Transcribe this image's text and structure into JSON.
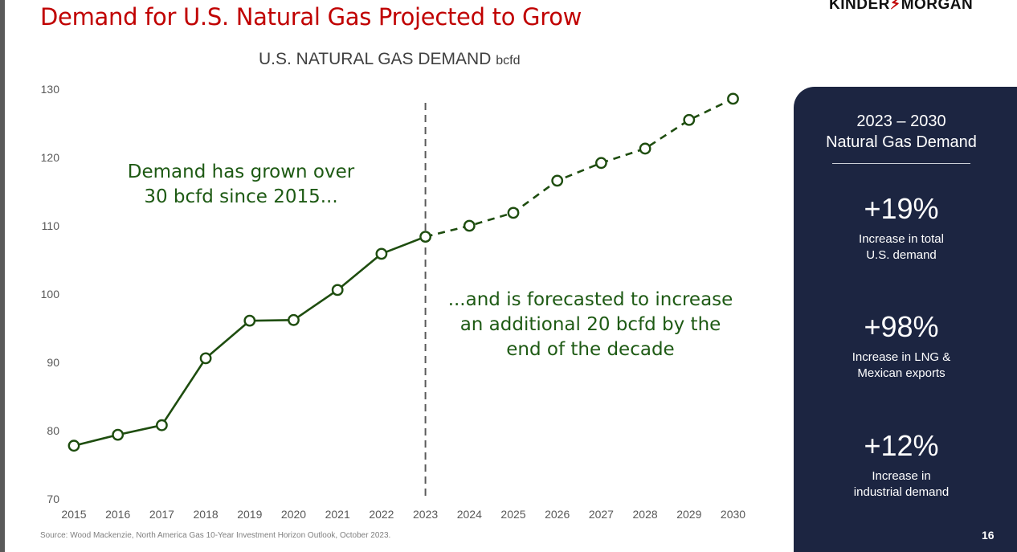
{
  "header": {
    "title": "Demand for U.S. Natural Gas Projected to Grow",
    "logo_left": "KINDER",
    "logo_right": "MORGAN"
  },
  "chart_data": {
    "type": "line",
    "title": "U.S. NATURAL GAS DEMAND",
    "unit": "bcfd",
    "xlabel": "",
    "ylabel": "",
    "ylim": [
      70,
      130
    ],
    "yticks": [
      70,
      80,
      90,
      100,
      110,
      120,
      130
    ],
    "x": [
      2015,
      2016,
      2017,
      2018,
      2019,
      2020,
      2021,
      2022,
      2023,
      2024,
      2025,
      2026,
      2027,
      2028,
      2029,
      2030
    ],
    "series": [
      {
        "style": "solid",
        "color": "#1e4d0f",
        "x": [
          2015,
          2016,
          2017,
          2018,
          2019,
          2020,
          2021,
          2022,
          2023
        ],
        "values": [
          77.8,
          79.4,
          80.8,
          90.6,
          96.1,
          96.2,
          100.6,
          105.9,
          108.4
        ]
      },
      {
        "style": "dashed",
        "color": "#1e4d0f",
        "x": [
          2023,
          2024,
          2025,
          2026,
          2027,
          2028,
          2029,
          2030
        ],
        "values": [
          108.4,
          110.0,
          111.9,
          116.6,
          119.2,
          121.3,
          125.5,
          128.6
        ]
      }
    ],
    "divider_x": 2023,
    "annotations": [
      {
        "lines": [
          "Demand has grown over",
          "30 bcfd since 2015..."
        ]
      },
      {
        "lines": [
          "...and is forecasted to increase",
          "an additional 20 bcfd by the",
          "end of the decade"
        ]
      }
    ],
    "grid": false,
    "legend": "none"
  },
  "source": "Source:  Wood Mackenzie, North America Gas 10-Year Investment Horizon Outlook, October 2023.",
  "panel": {
    "title_lines": [
      "2023 – 2030",
      "Natural Gas Demand"
    ],
    "stats": [
      {
        "value": "+19%",
        "desc_lines": [
          "Increase in total",
          "U.S. demand"
        ]
      },
      {
        "value": "+98%",
        "desc_lines": [
          "Increase in LNG &",
          "Mexican exports"
        ]
      },
      {
        "value": "+12%",
        "desc_lines": [
          "Increase in",
          "industrial demand"
        ]
      }
    ],
    "background": "#1c2541"
  },
  "page_number": "16",
  "colors": {
    "title": "#c00000",
    "series": "#1e4d0f",
    "annotation": "#1e5a14",
    "axis_text": "#595959"
  }
}
